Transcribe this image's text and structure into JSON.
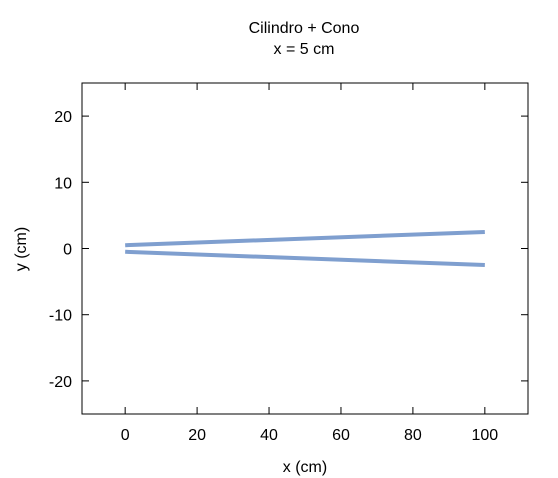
{
  "chart_data": {
    "type": "line",
    "title": "Cilindro + Cono",
    "subtitle": "x = 5 cm",
    "xlabel": "x (cm)",
    "ylabel": "y (cm)",
    "xlim": [
      -12,
      112
    ],
    "ylim": [
      -25,
      25
    ],
    "xticks": [
      0,
      20,
      40,
      60,
      80,
      100
    ],
    "yticks": [
      -20,
      -10,
      0,
      10,
      20
    ],
    "grid": false,
    "line_color": "#7f9fcf",
    "series": [
      {
        "x": [
          0,
          100
        ],
        "y": [
          0.5,
          2.5
        ]
      },
      {
        "x": [
          0,
          100
        ],
        "y": [
          -0.5,
          -2.5
        ]
      }
    ]
  }
}
